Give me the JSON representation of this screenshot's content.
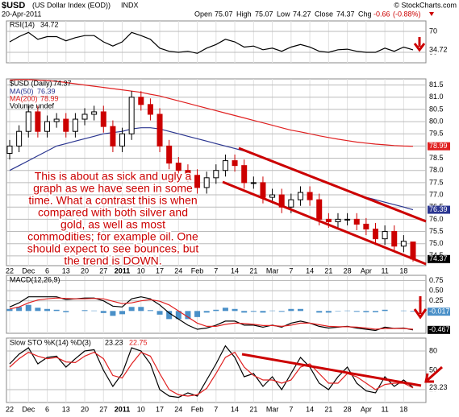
{
  "header": {
    "symbol": "$USD",
    "title": "(US Dollar Index (EOD))",
    "exchange": "INDX",
    "date": "20-Apr-2011",
    "credit": "© StockCharts.com",
    "open_label": "Open",
    "high_label": "High",
    "low_label": "Low",
    "close_label": "Close",
    "chg_label": "Chg",
    "change": -0.66,
    "change_pct": {
      "value": -0.88,
      "label": "(-0.88%)"
    }
  },
  "annotation_lines": [
    "This is about as sick and ugly a",
    "graph as we have seen in some",
    "time. What a contrast this is when",
    "compared with both silver and",
    "gold, as well as most",
    "commodities; for example oil. One",
    "should expect to see bounces, but",
    "the trend is DOWN."
  ],
  "chart_data": [
    {
      "type": "line",
      "title": "RSI(14)",
      "series": [
        {
          "color": "#000000",
          "values": [
            50,
            60,
            68,
            55,
            60,
            60,
            52,
            58,
            62,
            62,
            50,
            42,
            50,
            68,
            62,
            55,
            38,
            32,
            30,
            32,
            28,
            38,
            45,
            55,
            50,
            40,
            42,
            35,
            38,
            32,
            40,
            45,
            40,
            32,
            30,
            35,
            36,
            32,
            30,
            30,
            38,
            32,
            40,
            34.72
          ]
        }
      ],
      "ylim": [
        10,
        90
      ],
      "yticks": [
        30,
        70
      ]
    },
    {
      "type": "candlestick",
      "title": "$USD (Daily)",
      "volume_label": "Volume undef",
      "up_color": "#000000",
      "down_color": "#cc0000",
      "categories": [
        "22",
        null,
        "Dec",
        null,
        "6",
        null,
        "13",
        null,
        "20",
        null,
        "27",
        null,
        "2011",
        null,
        "10",
        null,
        "17",
        null,
        "24",
        null,
        "Feb",
        null,
        "7",
        null,
        "14",
        null,
        "21",
        null,
        "Mar",
        null,
        "7",
        null,
        "14",
        null,
        "21",
        null,
        "28",
        null,
        "Apr",
        null,
        "11",
        null,
        "18",
        null
      ],
      "open": [
        78.7,
        79.0,
        79.6,
        80.4,
        79.6,
        80.0,
        80.1,
        79.6,
        80.1,
        80.3,
        80.4,
        79.8,
        79.0,
        79.5,
        81.0,
        80.7,
        80.3,
        79.0,
        78.3,
        78.0,
        77.8,
        77.3,
        77.7,
        78.0,
        78.4,
        78.2,
        77.5,
        77.5,
        76.9,
        77.0,
        76.5,
        76.8,
        77.1,
        76.8,
        76.0,
        75.9,
        76.0,
        76.0,
        75.8,
        75.6,
        75.2,
        75.5,
        74.9,
        75.07
      ],
      "high": [
        79.25,
        79.85,
        80.65,
        80.65,
        80.25,
        80.35,
        80.35,
        80.35,
        80.55,
        80.65,
        80.65,
        80.05,
        79.75,
        81.25,
        81.25,
        80.95,
        80.55,
        79.25,
        78.55,
        78.25,
        78.05,
        77.95,
        78.25,
        78.65,
        78.65,
        78.45,
        77.75,
        77.75,
        77.25,
        77.25,
        77.05,
        77.35,
        77.35,
        77.05,
        76.25,
        76.25,
        76.25,
        76.25,
        76.05,
        75.85,
        75.75,
        75.75,
        75.35,
        75.07
      ],
      "low": [
        78.45,
        78.75,
        79.35,
        79.35,
        79.35,
        79.75,
        79.35,
        79.35,
        79.85,
        80.05,
        79.55,
        78.75,
        78.75,
        79.25,
        80.45,
        80.05,
        78.75,
        78.05,
        77.75,
        77.55,
        77.05,
        77.05,
        77.45,
        77.75,
        77.95,
        77.25,
        77.25,
        76.65,
        76.65,
        76.25,
        76.25,
        76.55,
        76.55,
        75.75,
        75.65,
        75.65,
        75.75,
        75.55,
        75.35,
        74.95,
        74.95,
        74.65,
        74.65,
        74.27
      ],
      "close": [
        79.0,
        79.6,
        80.4,
        79.6,
        80.0,
        80.1,
        79.6,
        80.1,
        80.3,
        80.4,
        79.8,
        79.0,
        79.5,
        81.0,
        80.7,
        80.3,
        79.0,
        78.3,
        78.0,
        77.8,
        77.3,
        77.7,
        78.0,
        78.4,
        78.2,
        77.5,
        77.5,
        76.9,
        77.0,
        76.5,
        76.8,
        77.1,
        76.8,
        76.0,
        75.9,
        76.0,
        76.0,
        75.8,
        75.6,
        75.2,
        75.5,
        74.9,
        75.1,
        74.37
      ],
      "series": [
        {
          "name": "MA(50)",
          "color": "#2a3590",
          "values": [
            78.0,
            78.2,
            78.4,
            78.6,
            78.8,
            79.0,
            79.1,
            79.2,
            79.3,
            79.4,
            79.5,
            79.55,
            79.6,
            79.7,
            79.75,
            79.75,
            79.7,
            79.6,
            79.5,
            79.4,
            79.3,
            79.2,
            79.1,
            79.0,
            78.9,
            78.8,
            78.65,
            78.5,
            78.35,
            78.2,
            78.05,
            77.9,
            77.75,
            77.6,
            77.45,
            77.3,
            77.15,
            77.0,
            76.9,
            76.8,
            76.7,
            76.6,
            76.5,
            76.39
          ]
        },
        {
          "name": "MA(200)",
          "color": "#e02020",
          "values": [
            81.7,
            81.72,
            81.72,
            81.7,
            81.68,
            81.65,
            81.6,
            81.55,
            81.5,
            81.45,
            81.4,
            81.35,
            81.3,
            81.25,
            81.2,
            81.12,
            81.05,
            80.95,
            80.85,
            80.75,
            80.65,
            80.55,
            80.45,
            80.35,
            80.25,
            80.15,
            80.05,
            79.95,
            79.85,
            79.75,
            79.65,
            79.58,
            79.5,
            79.42,
            79.35,
            79.28,
            79.22,
            79.16,
            79.12,
            79.08,
            79.05,
            79.02,
            79.0,
            78.99
          ]
        }
      ],
      "ylim": [
        74.1,
        81.75
      ],
      "yticks": [
        74.5,
        {
          "value": 75,
          "label": "75.0"
        },
        75.5,
        {
          "value": 76,
          "label": "76.0"
        },
        76.5,
        {
          "value": 77,
          "label": "77.0"
        },
        77.5,
        {
          "value": 78,
          "label": "78.0"
        },
        78.5,
        {
          "value": 79,
          "label": "79.0"
        },
        79.5,
        {
          "value": 80,
          "label": "80.0"
        },
        80.5,
        {
          "value": 81,
          "label": "81.0"
        },
        81.5
      ]
    },
    {
      "type": "macd",
      "title": "MACD(12,26,9)",
      "series": [
        {
          "color": "#000000",
          "values": [
            0.1,
            0.2,
            0.35,
            0.35,
            0.35,
            0.35,
            0.28,
            0.3,
            0.32,
            0.32,
            0.25,
            0.12,
            0.1,
            0.3,
            0.35,
            0.3,
            0.15,
            -0.05,
            -0.2,
            -0.35,
            -0.45,
            -0.42,
            -0.35,
            -0.25,
            -0.25,
            -0.35,
            -0.35,
            -0.4,
            -0.35,
            -0.4,
            -0.3,
            -0.25,
            -0.3,
            -0.38,
            -0.42,
            -0.4,
            -0.38,
            -0.42,
            -0.45,
            -0.48,
            -0.4,
            -0.43,
            -0.42,
            -0.467
          ]
        },
        {
          "color": "#e02020",
          "values": [
            0.05,
            0.1,
            0.2,
            0.27,
            0.3,
            0.32,
            0.31,
            0.3,
            0.3,
            0.31,
            0.3,
            0.24,
            0.18,
            0.2,
            0.25,
            0.28,
            0.24,
            0.15,
            0.0,
            -0.15,
            -0.3,
            -0.38,
            -0.38,
            -0.33,
            -0.3,
            -0.31,
            -0.33,
            -0.36,
            -0.36,
            -0.38,
            -0.35,
            -0.3,
            -0.3,
            -0.34,
            -0.38,
            -0.39,
            -0.39,
            -0.4,
            -0.42,
            -0.45,
            -0.43,
            -0.43,
            -0.43,
            -0.45
          ]
        }
      ],
      "histogram": {
        "color": "#4a90c8",
        "values": [
          0.05,
          0.1,
          0.15,
          0.08,
          0.05,
          0.03,
          -0.03,
          0,
          0.02,
          0.01,
          -0.05,
          -0.12,
          -0.08,
          0.1,
          0.1,
          0.02,
          -0.09,
          -0.2,
          -0.2,
          -0.2,
          -0.15,
          -0.04,
          0.03,
          0.08,
          0.05,
          -0.04,
          -0.02,
          -0.04,
          0.01,
          -0.02,
          0.05,
          0.05,
          0,
          -0.04,
          -0.04,
          -0.01,
          0.01,
          -0.02,
          -0.03,
          -0.03,
          0.03,
          0,
          0.01,
          -0.017
        ]
      },
      "ylim": [
        -0.55,
        0.88
      ],
      "yticks": [
        0.25,
        {
          "value": 0.5,
          "label": "0.50"
        },
        0.75
      ]
    },
    {
      "type": "line",
      "title": "Slow STO %K(14) %D(3)",
      "series": [
        {
          "color": "#000000",
          "values": [
            60,
            75,
            85,
            60,
            70,
            72,
            55,
            68,
            80,
            82,
            50,
            25,
            45,
            85,
            80,
            60,
            20,
            10,
            8,
            15,
            10,
            35,
            60,
            88,
            70,
            40,
            45,
            25,
            40,
            20,
            45,
            70,
            55,
            30,
            20,
            40,
            55,
            30,
            18,
            15,
            40,
            25,
            35,
            23.23
          ]
        },
        {
          "color": "#e02020",
          "values": [
            55,
            68,
            78,
            72,
            68,
            70,
            63,
            62,
            72,
            78,
            68,
            42,
            38,
            60,
            78,
            72,
            45,
            20,
            12,
            10,
            12,
            22,
            45,
            70,
            78,
            55,
            42,
            35,
            35,
            30,
            35,
            55,
            60,
            45,
            30,
            30,
            45,
            40,
            30,
            20,
            28,
            30,
            30,
            22.75
          ]
        }
      ],
      "ylim": [
        0,
        100
      ],
      "yticks": [
        20,
        50,
        80
      ]
    }
  ]
}
